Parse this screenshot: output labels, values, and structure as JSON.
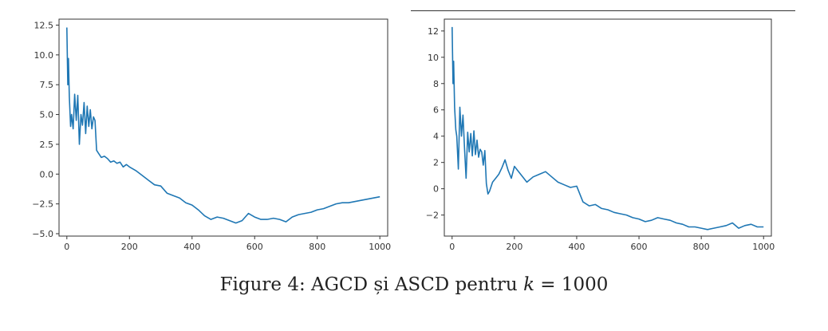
{
  "caption": {
    "prefix": "Figure 4: AGCD și ASCD pentru ",
    "variable": "k",
    "relation": " = 1000"
  },
  "chart_data": [
    {
      "type": "line",
      "title": "",
      "xlabel": "",
      "ylabel": "",
      "xlim": [
        -25,
        1025
      ],
      "ylim": [
        -5.2,
        13.0
      ],
      "xticks": [
        0,
        200,
        400,
        600,
        800,
        1000
      ],
      "yticks": [
        12.5,
        10.0,
        7.5,
        5.0,
        2.5,
        0.0,
        -2.5,
        -5.0
      ],
      "ytick_labels": [
        "12.5",
        "10.0",
        "7.5",
        "5.0",
        "2.5",
        "0.0",
        "−2.5",
        "−5.0"
      ],
      "grid": false,
      "color": "#1f77b4",
      "series": [
        {
          "x": [
            0,
            3,
            5,
            8,
            12,
            15,
            20,
            25,
            30,
            35,
            40,
            45,
            50,
            55,
            60,
            65,
            70,
            75,
            80,
            85,
            90,
            95,
            100,
            110,
            120,
            130,
            140,
            150,
            160,
            170,
            180,
            190,
            200,
            220,
            240,
            260,
            280,
            300,
            320,
            340,
            360,
            380,
            400,
            420,
            440,
            460,
            480,
            500,
            520,
            540,
            560,
            580,
            600,
            620,
            640,
            660,
            680,
            700,
            720,
            740,
            760,
            780,
            800,
            820,
            840,
            860,
            880,
            900,
            920,
            940,
            960,
            980,
            1000
          ],
          "y": [
            12.3,
            7.5,
            9.7,
            6.5,
            4.0,
            5.0,
            3.8,
            6.7,
            4.5,
            6.6,
            2.5,
            5.0,
            4.1,
            6.0,
            3.4,
            5.7,
            4.0,
            5.4,
            3.8,
            4.8,
            4.5,
            2.0,
            1.8,
            1.4,
            1.5,
            1.3,
            1.0,
            1.1,
            0.9,
            1.0,
            0.6,
            0.8,
            0.6,
            0.3,
            -0.1,
            -0.5,
            -0.9,
            -1.0,
            -1.6,
            -1.8,
            -2.0,
            -2.4,
            -2.6,
            -3.0,
            -3.5,
            -3.8,
            -3.6,
            -3.7,
            -3.9,
            -4.1,
            -3.9,
            -3.3,
            -3.6,
            -3.8,
            -3.8,
            -3.7,
            -3.8,
            -4.0,
            -3.6,
            -3.4,
            -3.3,
            -3.2,
            -3.0,
            -2.9,
            -2.7,
            -2.5,
            -2.4,
            -2.4,
            -2.3,
            -2.2,
            -2.1,
            -2.0,
            -1.9
          ]
        }
      ]
    },
    {
      "type": "line",
      "title": "",
      "xlabel": "",
      "ylabel": "",
      "xlim": [
        -25,
        1025
      ],
      "ylim": [
        -3.6,
        12.9
      ],
      "xticks": [
        0,
        200,
        400,
        600,
        800,
        1000
      ],
      "yticks": [
        12,
        10,
        8,
        6,
        4,
        2,
        0,
        -2
      ],
      "ytick_labels": [
        "12",
        "10",
        "8",
        "6",
        "4",
        "2",
        "0",
        "−2"
      ],
      "grid": false,
      "color": "#1f77b4",
      "series": [
        {
          "x": [
            0,
            3,
            5,
            8,
            12,
            15,
            20,
            25,
            30,
            35,
            40,
            45,
            50,
            55,
            60,
            65,
            70,
            75,
            80,
            85,
            90,
            95,
            100,
            105,
            110,
            115,
            120,
            130,
            140,
            150,
            160,
            170,
            180,
            190,
            200,
            220,
            240,
            260,
            280,
            300,
            320,
            340,
            360,
            380,
            400,
            420,
            440,
            460,
            480,
            500,
            520,
            540,
            560,
            580,
            600,
            620,
            640,
            660,
            680,
            700,
            720,
            740,
            760,
            780,
            800,
            820,
            840,
            860,
            880,
            900,
            920,
            940,
            960,
            980,
            1000
          ],
          "y": [
            12.3,
            8.0,
            9.7,
            6.2,
            4.5,
            4.0,
            1.5,
            6.2,
            4.0,
            5.6,
            3.0,
            0.8,
            4.3,
            2.8,
            4.2,
            2.5,
            4.4,
            2.6,
            3.7,
            2.4,
            3.0,
            2.8,
            1.8,
            2.9,
            0.4,
            -0.4,
            -0.2,
            0.5,
            0.8,
            1.1,
            1.6,
            2.2,
            1.4,
            0.8,
            1.7,
            1.1,
            0.5,
            0.9,
            1.1,
            1.3,
            0.9,
            0.5,
            0.3,
            0.1,
            0.2,
            -1.0,
            -1.3,
            -1.2,
            -1.5,
            -1.6,
            -1.8,
            -1.9,
            -2.0,
            -2.2,
            -2.3,
            -2.5,
            -2.4,
            -2.2,
            -2.3,
            -2.4,
            -2.6,
            -2.7,
            -2.9,
            -2.9,
            -3.0,
            -3.1,
            -3.0,
            -2.9,
            -2.8,
            -2.6,
            -3.0,
            -2.8,
            -2.7,
            -2.9,
            -2.9
          ]
        }
      ]
    }
  ]
}
